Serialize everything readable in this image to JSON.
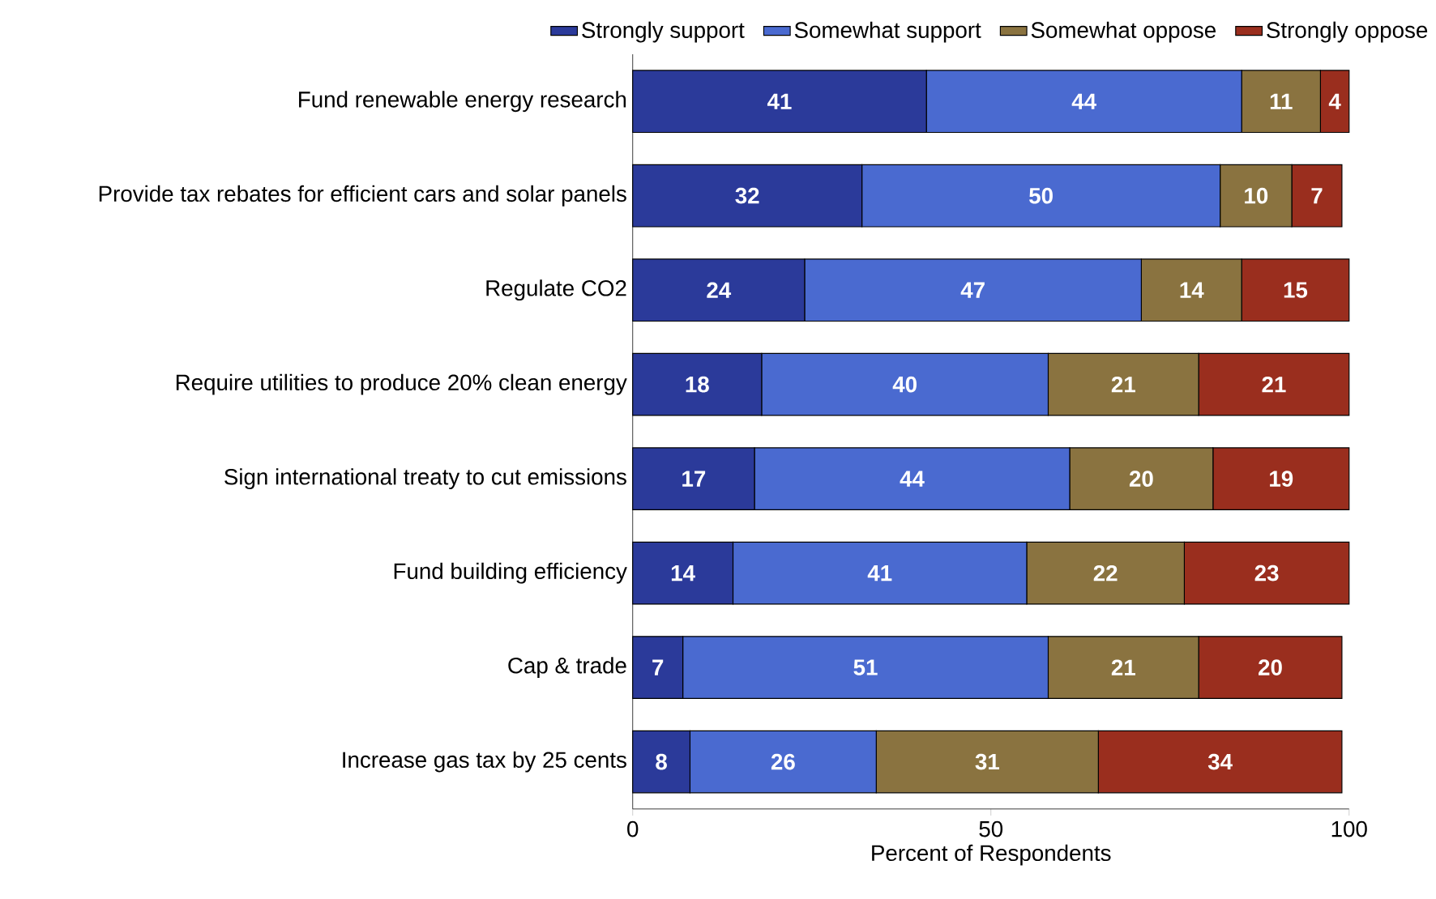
{
  "chart_data": {
    "type": "bar",
    "orientation": "horizontal",
    "stacked": true,
    "data_labels": true,
    "legend": "top",
    "grid": false,
    "xlabel": "Percent of Respondents",
    "categories": [
      "Fund renewable energy research",
      "Provide tax rebates for efficient cars and solar panels",
      "Regulate CO2",
      "Require utilities to produce 20% clean energy",
      "Sign international treaty to cut emissions",
      "Fund building efficiency",
      "Cap & trade",
      "Increase gas tax by 25 cents"
    ],
    "xlim": [
      0,
      100
    ],
    "xticks": [
      0,
      50,
      100
    ],
    "series": [
      {
        "name": "Strongly support",
        "color": "#2b3a9a",
        "values": [
          41,
          32,
          24,
          18,
          17,
          14,
          7,
          8
        ]
      },
      {
        "name": "Somewhat support",
        "color": "#4a6ad0",
        "values": [
          44,
          50,
          47,
          40,
          44,
          41,
          51,
          26
        ]
      },
      {
        "name": "Somewhat oppose",
        "color": "#8a7340",
        "values": [
          11,
          10,
          14,
          21,
          20,
          22,
          21,
          31
        ]
      },
      {
        "name": "Strongly oppose",
        "color": "#9a2e1e",
        "values": [
          4,
          7,
          15,
          21,
          19,
          23,
          20,
          34
        ]
      }
    ]
  }
}
